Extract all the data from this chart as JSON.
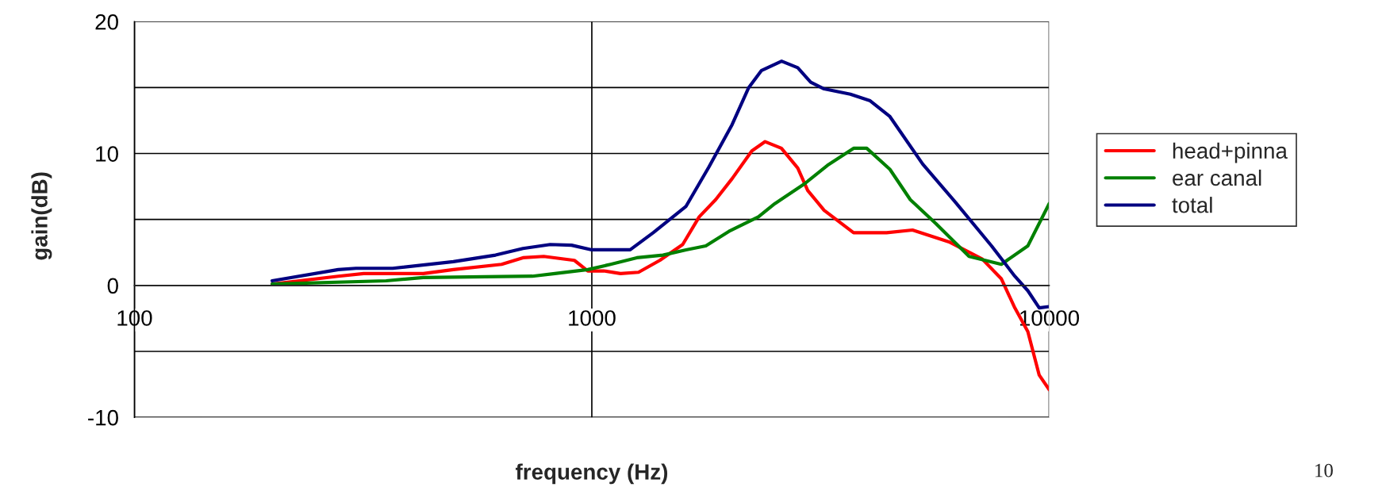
{
  "chart_data": {
    "type": "line",
    "xlabel": "frequency (Hz)",
    "ylabel": "gain(dB)",
    "log": "x",
    "xlim": [
      100,
      10000
    ],
    "xticks": [
      100,
      1000,
      10000
    ],
    "ylim": [
      -10,
      20
    ],
    "yticks": [
      -10,
      {
        "value": -5,
        "label": null
      },
      0,
      {
        "value": 5,
        "label": null
      },
      10,
      {
        "value": 15,
        "label": null
      },
      20
    ],
    "grid": true,
    "legend": "right",
    "marker": "none",
    "line_style": "solid",
    "annotations": [
      "10"
    ],
    "series": [
      {
        "name": "head+pinna",
        "color": "#ff0000",
        "x": [
          200,
          279,
          317,
          428,
          498,
          635,
          707,
          785,
          916,
          980,
          1063,
          1155,
          1265,
          1408,
          1580,
          1717,
          1865,
          2027,
          2238,
          2393,
          2597,
          2820,
          2965,
          3220,
          3735,
          4410,
          5025,
          6040,
          7140,
          7860,
          8410,
          8980,
          9510,
          10000
        ],
        "values": [
          0.1,
          0.7,
          0.9,
          0.9,
          1.2,
          1.6,
          2.1,
          2.2,
          1.9,
          1.1,
          1.1,
          0.9,
          1.0,
          1.9,
          3.1,
          5.2,
          6.5,
          8.1,
          10.2,
          10.9,
          10.4,
          8.9,
          7.2,
          5.7,
          4.0,
          4.0,
          4.2,
          3.3,
          2.0,
          0.5,
          -1.7,
          -3.5,
          -6.8,
          -7.9
        ]
      },
      {
        "name": "ear canal",
        "color": "#008000",
        "x": [
          200,
          355,
          428,
          741,
          830,
          980,
          1099,
          1254,
          1431,
          1607,
          1775,
          1994,
          2313,
          2513,
          2917,
          3273,
          3735,
          3990,
          4485,
          4970,
          5650,
          6680,
          7860,
          8980,
          10000
        ],
        "values": [
          0.1,
          0.35,
          0.6,
          0.7,
          0.9,
          1.2,
          1.6,
          2.1,
          2.3,
          2.7,
          3.0,
          4.1,
          5.2,
          6.2,
          7.7,
          9.1,
          10.4,
          10.4,
          8.8,
          6.5,
          4.7,
          2.2,
          1.6,
          3.0,
          6.2
        ]
      },
      {
        "name": "total",
        "color": "#000080",
        "x": [
          200,
          279,
          305,
          367,
          498,
          616,
          707,
          811,
          903,
          1000,
          1213,
          1362,
          1607,
          1804,
          2027,
          2203,
          2350,
          2600,
          2820,
          3010,
          3220,
          3675,
          4060,
          4485,
          5290,
          6240,
          7480,
          8410,
          8980,
          9510,
          10000
        ],
        "values": [
          0.35,
          1.2,
          1.3,
          1.3,
          1.8,
          2.3,
          2.8,
          3.1,
          3.05,
          2.7,
          2.7,
          4.0,
          6.0,
          9.0,
          12.2,
          15.0,
          16.3,
          17.0,
          16.5,
          15.4,
          14.9,
          14.5,
          14.0,
          12.8,
          9.2,
          6.3,
          3.0,
          0.7,
          -0.4,
          -1.7,
          -1.6
        ]
      }
    ]
  }
}
